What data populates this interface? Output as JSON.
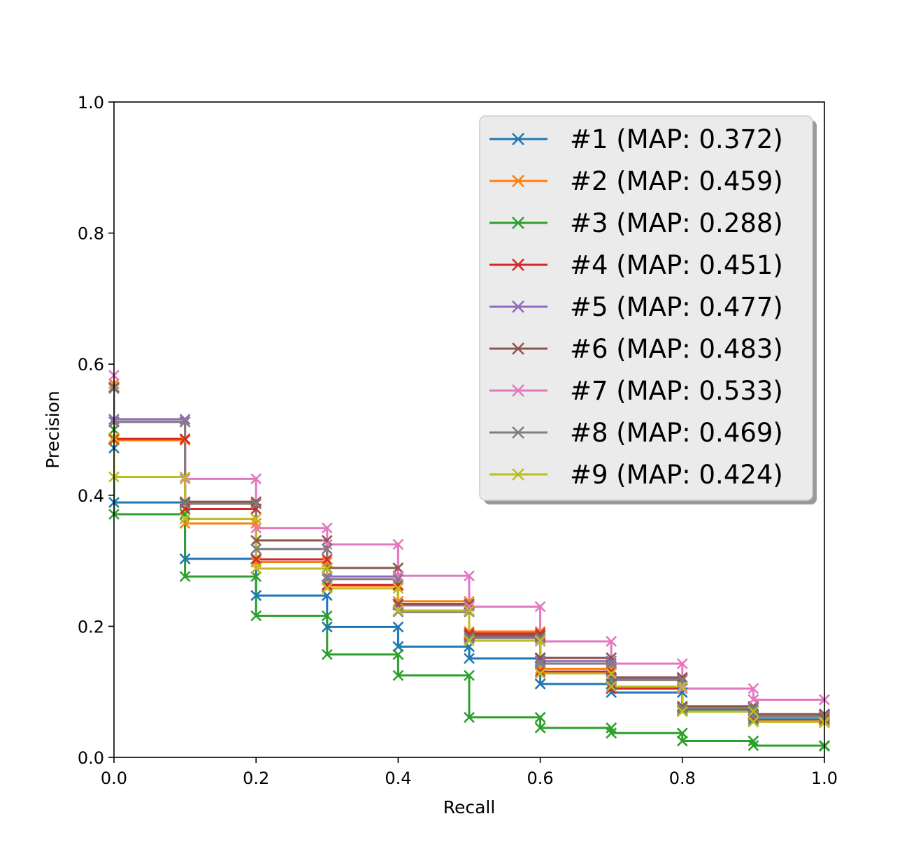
{
  "chart_data": {
    "type": "line",
    "step": "post",
    "xlabel": "Recall",
    "ylabel": "Precision",
    "xlim": [
      0,
      1
    ],
    "ylim": [
      0,
      1
    ],
    "xticks": [
      "0.0",
      "0.2",
      "0.4",
      "0.6",
      "0.8",
      "1.0"
    ],
    "yticks": [
      "0.0",
      "0.2",
      "0.4",
      "0.6",
      "0.8",
      "1.0"
    ],
    "grid": false,
    "legend_position": "top-right",
    "marker": "x",
    "x": [
      0,
      0.1,
      0.2,
      0.3,
      0.4,
      0.5,
      0.6,
      0.7,
      0.8,
      0.9,
      1.0
    ],
    "series": [
      {
        "name": "#1 (MAP: 0.372)",
        "color": "#1f77b4",
        "start": 0.472,
        "values": [
          0.389,
          0.303,
          0.247,
          0.199,
          0.169,
          0.151,
          0.112,
          0.099,
          0.072,
          0.058,
          0.056
        ]
      },
      {
        "name": "#2 (MAP: 0.459)",
        "color": "#ff7f0e",
        "start": 0.57,
        "values": [
          0.484,
          0.357,
          0.298,
          0.262,
          0.238,
          0.192,
          0.135,
          0.105,
          0.07,
          0.055,
          0.053
        ]
      },
      {
        "name": "#3 (MAP: 0.288)",
        "color": "#2ca02c",
        "start": 0.5,
        "values": [
          0.371,
          0.276,
          0.216,
          0.157,
          0.125,
          0.061,
          0.045,
          0.037,
          0.025,
          0.018,
          0.017
        ]
      },
      {
        "name": "#4 (MAP: 0.451)",
        "color": "#d62728",
        "start": 0.565,
        "values": [
          0.486,
          0.379,
          0.302,
          0.263,
          0.234,
          0.189,
          0.131,
          0.105,
          0.076,
          0.062,
          0.06
        ]
      },
      {
        "name": "#5 (MAP: 0.477)",
        "color": "#9467bd",
        "start": 0.563,
        "values": [
          0.516,
          0.387,
          0.318,
          0.276,
          0.232,
          0.185,
          0.147,
          0.12,
          0.078,
          0.065,
          0.064
        ]
      },
      {
        "name": "#6 (MAP: 0.483)",
        "color": "#8c564b",
        "start": 0.565,
        "values": [
          0.512,
          0.39,
          0.331,
          0.289,
          0.234,
          0.186,
          0.152,
          0.122,
          0.078,
          0.066,
          0.065
        ]
      },
      {
        "name": "#7 (MAP: 0.533)",
        "color": "#e377c2",
        "start": 0.583,
        "values": [
          0.512,
          0.425,
          0.35,
          0.325,
          0.277,
          0.23,
          0.177,
          0.143,
          0.105,
          0.088,
          0.088
        ]
      },
      {
        "name": "#8 (MAP: 0.469)",
        "color": "#7f7f7f",
        "start": 0.563,
        "values": [
          0.512,
          0.387,
          0.318,
          0.272,
          0.222,
          0.182,
          0.143,
          0.118,
          0.075,
          0.063,
          0.062
        ]
      },
      {
        "name": "#9 (MAP: 0.424)",
        "color": "#bcbd22",
        "start": 0.488,
        "values": [
          0.428,
          0.364,
          0.288,
          0.258,
          0.224,
          0.178,
          0.128,
          0.108,
          0.07,
          0.054,
          0.053
        ]
      }
    ]
  }
}
